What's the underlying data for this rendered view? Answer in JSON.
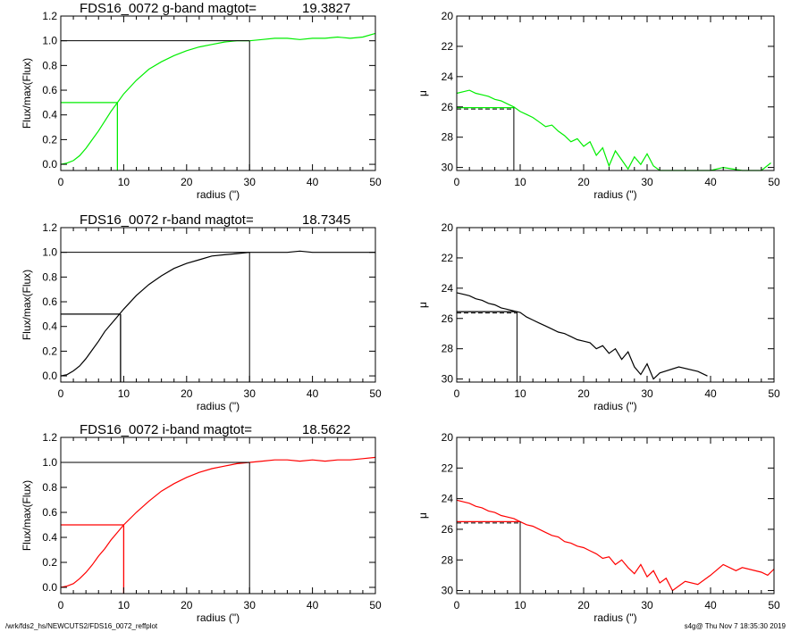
{
  "footer": {
    "left": "/wrk/fds2_hs/NEWCUTS2/FDS16_0072_reffplot",
    "right": "s4g@  Thu Nov  7 18:35:30 2019"
  },
  "colors": {
    "g": "#00ee00",
    "r": "#000000",
    "i": "#ff0000",
    "axes": "#000000"
  },
  "chart_data": [
    {
      "type": "line",
      "panel": "growth-curve-g",
      "band": "g",
      "color": "#00ee00",
      "title": "FDS16_0072 g-band  magtot=",
      "title_value": "19.3827",
      "xlabel": "radius (\")",
      "ylabel": "Flux/max(Flux)",
      "xlim": [
        0,
        50
      ],
      "ylim": [
        -0.05,
        1.2
      ],
      "xticks": [
        "0",
        "10",
        "20",
        "30",
        "40",
        "50"
      ],
      "yticks": [
        "0.0",
        "0.2",
        "0.4",
        "0.6",
        "0.8",
        "1.0",
        "1.2"
      ],
      "series": [
        {
          "x": [
            0,
            1,
            2,
            3,
            4,
            5,
            6,
            7,
            8,
            9,
            10,
            12,
            14,
            16,
            18,
            20,
            22,
            24,
            26,
            28,
            30,
            32,
            34,
            36,
            38,
            40,
            42,
            44,
            46,
            48,
            50
          ],
          "y": [
            0,
            0.01,
            0.03,
            0.07,
            0.13,
            0.2,
            0.27,
            0.35,
            0.43,
            0.5,
            0.57,
            0.68,
            0.77,
            0.83,
            0.88,
            0.92,
            0.95,
            0.97,
            0.99,
            1.0,
            1.0,
            1.01,
            1.02,
            1.02,
            1.01,
            1.02,
            1.02,
            1.03,
            1.02,
            1.03,
            1.06
          ]
        }
      ],
      "half_light_radius": 9.0,
      "half_light_level": 0.5,
      "total_radius": 30.0,
      "total_level": 1.0
    },
    {
      "type": "line",
      "panel": "sb-profile-g",
      "band": "g",
      "color": "#00ee00",
      "xlabel": "radius (\")",
      "ylabel": "μ",
      "xlim": [
        0,
        50
      ],
      "ylim": [
        30.2,
        20
      ],
      "y_inverted": true,
      "xticks": [
        "0",
        "10",
        "20",
        "30",
        "40",
        "50"
      ],
      "yticks": [
        "20",
        "22",
        "24",
        "26",
        "28",
        "30"
      ],
      "series": [
        {
          "x": [
            0,
            1,
            2,
            3,
            4,
            5,
            6,
            7,
            8,
            9,
            10,
            11,
            12,
            13,
            14,
            15,
            16,
            17,
            18,
            19,
            20,
            21,
            22,
            23,
            24,
            25,
            26,
            27,
            28,
            29,
            30,
            31,
            32,
            33,
            40,
            42,
            45,
            48,
            49.5
          ],
          "y": [
            25.1,
            25.0,
            24.9,
            25.1,
            25.2,
            25.3,
            25.5,
            25.6,
            25.8,
            26.0,
            26.3,
            26.5,
            26.7,
            27.0,
            27.3,
            27.2,
            27.6,
            27.9,
            28.3,
            28.1,
            28.6,
            28.3,
            29.2,
            28.7,
            29.9,
            28.9,
            29.5,
            30.1,
            29.3,
            29.8,
            29.1,
            29.9,
            30.2,
            30.2,
            30.2,
            30.0,
            30.2,
            30.2,
            29.7
          ]
        }
      ],
      "half_light_radius": 9.0,
      "mu_e": 26.05
    },
    {
      "type": "line",
      "panel": "growth-curve-r",
      "band": "r",
      "color": "#000000",
      "title": "FDS16_0072 r-band  magtot=",
      "title_value": "18.7345",
      "xlabel": "radius (\")",
      "ylabel": "Flux/max(Flux)",
      "xlim": [
        0,
        50
      ],
      "ylim": [
        -0.05,
        1.2
      ],
      "xticks": [
        "0",
        "10",
        "20",
        "30",
        "40",
        "50"
      ],
      "yticks": [
        "0.0",
        "0.2",
        "0.4",
        "0.6",
        "0.8",
        "1.0",
        "1.2"
      ],
      "series": [
        {
          "x": [
            0,
            1,
            2,
            3,
            4,
            5,
            6,
            7,
            8,
            9,
            10,
            12,
            14,
            16,
            18,
            20,
            22,
            24,
            26,
            28,
            30,
            32,
            34,
            36,
            38,
            40,
            42,
            44,
            46,
            48,
            50
          ],
          "y": [
            0,
            0.01,
            0.04,
            0.08,
            0.14,
            0.21,
            0.28,
            0.36,
            0.42,
            0.48,
            0.54,
            0.65,
            0.74,
            0.81,
            0.87,
            0.91,
            0.94,
            0.97,
            0.98,
            0.99,
            1.0,
            1.0,
            1.0,
            1.0,
            1.01,
            1.0,
            1.0,
            1.0,
            1.0,
            1.0,
            1.0
          ]
        }
      ],
      "half_light_radius": 9.5,
      "half_light_level": 0.5,
      "total_radius": 30.0,
      "total_level": 1.0
    },
    {
      "type": "line",
      "panel": "sb-profile-r",
      "band": "r",
      "color": "#000000",
      "xlabel": "radius (\")",
      "ylabel": "μ",
      "xlim": [
        0,
        50
      ],
      "ylim": [
        30.2,
        20
      ],
      "y_inverted": true,
      "xticks": [
        "0",
        "10",
        "20",
        "30",
        "40",
        "50"
      ],
      "yticks": [
        "20",
        "22",
        "24",
        "26",
        "28",
        "30"
      ],
      "series": [
        {
          "x": [
            0,
            1,
            2,
            3,
            4,
            5,
            6,
            7,
            8,
            9,
            10,
            11,
            12,
            13,
            14,
            15,
            16,
            17,
            18,
            19,
            20,
            21,
            22,
            23,
            24,
            25,
            26,
            27,
            28,
            29,
            30,
            31,
            32,
            35,
            38,
            39.5
          ],
          "y": [
            24.3,
            24.4,
            24.5,
            24.7,
            24.8,
            25.0,
            25.1,
            25.3,
            25.4,
            25.5,
            25.6,
            25.9,
            26.1,
            26.3,
            26.5,
            26.7,
            26.9,
            27.0,
            27.2,
            27.4,
            27.5,
            27.6,
            28.0,
            27.8,
            28.3,
            28.0,
            28.7,
            28.2,
            29.2,
            29.7,
            29.0,
            30.0,
            29.6,
            29.2,
            29.5,
            29.8
          ]
        }
      ],
      "half_light_radius": 9.5,
      "mu_e": 25.55
    },
    {
      "type": "line",
      "panel": "growth-curve-i",
      "band": "i",
      "color": "#ff0000",
      "title": "FDS16_0072 i-band  magtot=",
      "title_value": "18.5622",
      "xlabel": "radius (\")",
      "ylabel": "Flux/max(Flux)",
      "xlim": [
        0,
        50
      ],
      "ylim": [
        -0.05,
        1.2
      ],
      "xticks": [
        "0",
        "10",
        "20",
        "30",
        "40",
        "50"
      ],
      "yticks": [
        "0.0",
        "0.2",
        "0.4",
        "0.6",
        "0.8",
        "1.0",
        "1.2"
      ],
      "series": [
        {
          "x": [
            0,
            1,
            2,
            3,
            4,
            5,
            6,
            7,
            8,
            9,
            10,
            12,
            14,
            16,
            18,
            20,
            22,
            24,
            26,
            28,
            30,
            32,
            34,
            36,
            38,
            40,
            42,
            44,
            46,
            48,
            50
          ],
          "y": [
            0,
            0.01,
            0.03,
            0.07,
            0.12,
            0.18,
            0.25,
            0.31,
            0.38,
            0.44,
            0.5,
            0.6,
            0.69,
            0.77,
            0.83,
            0.88,
            0.92,
            0.95,
            0.97,
            0.99,
            1.0,
            1.01,
            1.02,
            1.02,
            1.01,
            1.02,
            1.01,
            1.02,
            1.02,
            1.03,
            1.04
          ]
        }
      ],
      "half_light_radius": 10.0,
      "half_light_level": 0.5,
      "total_radius": 30.0,
      "total_level": 1.0
    },
    {
      "type": "line",
      "panel": "sb-profile-i",
      "band": "i",
      "color": "#ff0000",
      "xlabel": "radius (\")",
      "ylabel": "μ",
      "xlim": [
        0,
        50
      ],
      "ylim": [
        30.2,
        20
      ],
      "y_inverted": true,
      "xticks": [
        "0",
        "10",
        "20",
        "30",
        "40",
        "50"
      ],
      "yticks": [
        "20",
        "22",
        "24",
        "26",
        "28",
        "30"
      ],
      "series": [
        {
          "x": [
            0,
            1,
            2,
            3,
            4,
            5,
            6,
            7,
            8,
            9,
            10,
            11,
            12,
            13,
            14,
            15,
            16,
            17,
            18,
            19,
            20,
            21,
            22,
            23,
            24,
            25,
            26,
            27,
            28,
            29,
            30,
            31,
            32,
            33,
            34,
            36,
            38,
            40,
            42,
            44,
            45,
            48,
            49,
            50
          ],
          "y": [
            24.1,
            24.2,
            24.3,
            24.5,
            24.6,
            24.8,
            24.9,
            25.1,
            25.2,
            25.3,
            25.5,
            25.7,
            25.8,
            26.0,
            26.2,
            26.4,
            26.5,
            26.8,
            26.9,
            27.1,
            27.2,
            27.4,
            27.6,
            27.9,
            27.8,
            28.3,
            28.0,
            28.5,
            28.9,
            28.3,
            29.1,
            28.7,
            29.5,
            29.2,
            30.0,
            29.4,
            29.6,
            29.0,
            28.3,
            28.7,
            28.5,
            28.8,
            29.0,
            28.6
          ]
        }
      ],
      "half_light_radius": 10.0,
      "mu_e": 25.5
    }
  ]
}
